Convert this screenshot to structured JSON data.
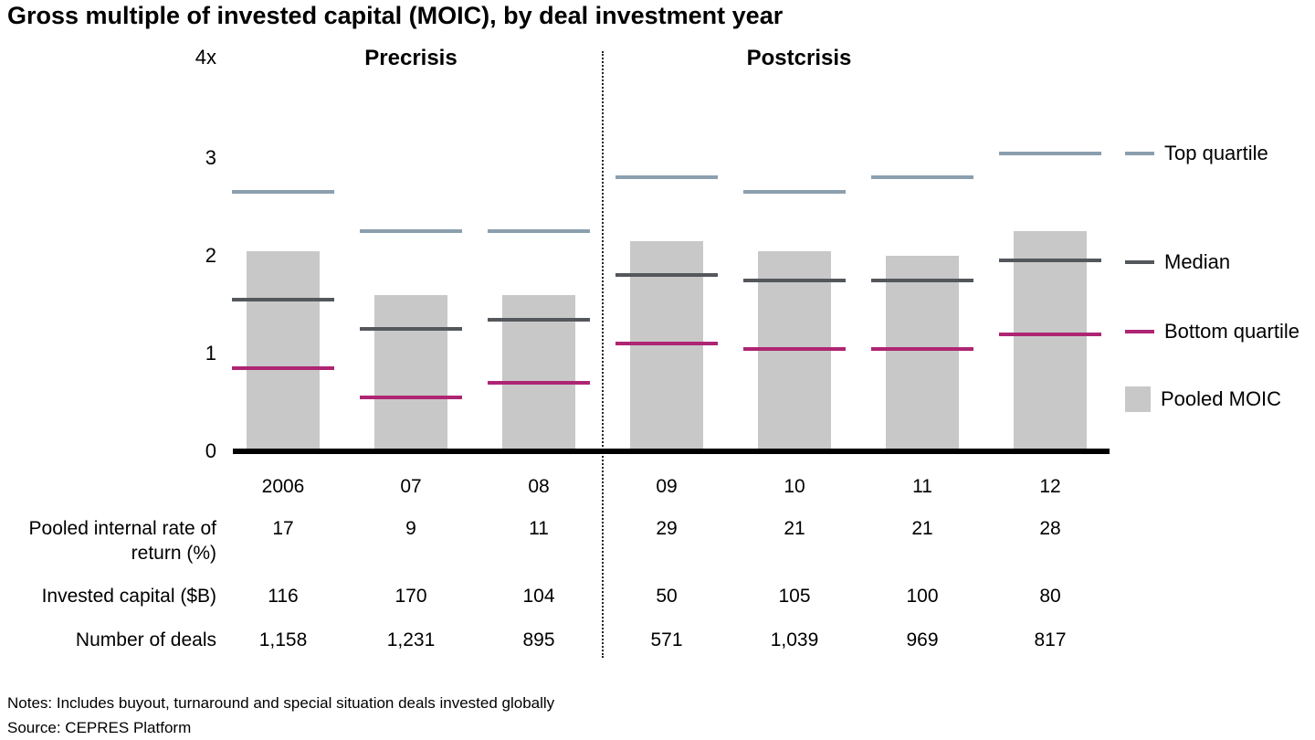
{
  "title": "Gross multiple of invested capital (MOIC), by deal investment year",
  "notes": "Notes: Includes buyout, turnaround and special situation deals invested globally",
  "source": "Source: CEPRES Platform",
  "chart_data": {
    "type": "bar",
    "title": "Gross multiple of invested capital (MOIC), by deal investment year",
    "y_axis_top_label": "4x",
    "y_ticks": [
      0,
      1,
      2,
      3
    ],
    "ylim": [
      0,
      4
    ],
    "grid": false,
    "legend_position": "right",
    "sections": [
      {
        "label": "Precrisis",
        "categories": [
          "2006",
          "07",
          "08"
        ]
      },
      {
        "label": "Postcrisis",
        "categories": [
          "09",
          "10",
          "11",
          "12"
        ]
      }
    ],
    "categories": [
      "2006",
      "07",
      "08",
      "09",
      "10",
      "11",
      "12"
    ],
    "series": [
      {
        "name": "Pooled MOIC",
        "type": "bar",
        "color": "#c8c8c8",
        "values": [
          2.05,
          1.6,
          1.6,
          2.15,
          2.05,
          2.0,
          2.25
        ]
      },
      {
        "name": "Top quartile",
        "type": "tick",
        "color": "#8b9fae",
        "values": [
          2.65,
          2.25,
          2.25,
          2.8,
          2.65,
          2.8,
          3.05
        ]
      },
      {
        "name": "Median",
        "type": "tick",
        "color": "#54575b",
        "values": [
          1.55,
          1.25,
          1.35,
          1.8,
          1.75,
          1.75,
          1.95
        ]
      },
      {
        "name": "Bottom quartile",
        "type": "tick",
        "color": "#ae2573",
        "values": [
          0.85,
          0.55,
          0.7,
          1.1,
          1.05,
          1.05,
          1.2
        ]
      }
    ],
    "legend": [
      {
        "label": "Top quartile",
        "swatch": "line",
        "color": "#8b9fae"
      },
      {
        "label": "Median",
        "swatch": "line",
        "color": "#54575b"
      },
      {
        "label": "Bottom quartile",
        "swatch": "line",
        "color": "#ae2573"
      },
      {
        "label": "Pooled MOIC",
        "swatch": "square",
        "color": "#c8c8c8"
      }
    ],
    "table": {
      "rows": [
        {
          "label": "Pooled internal rate of return (%)",
          "values": [
            "17",
            "9",
            "11",
            "29",
            "21",
            "21",
            "28"
          ]
        },
        {
          "label": "Invested capital ($B)",
          "values": [
            "116",
            "170",
            "104",
            "50",
            "105",
            "100",
            "80"
          ]
        },
        {
          "label": "Number of deals",
          "values": [
            "1,158",
            "1,231",
            "895",
            "571",
            "1,039",
            "969",
            "817"
          ]
        }
      ]
    }
  }
}
